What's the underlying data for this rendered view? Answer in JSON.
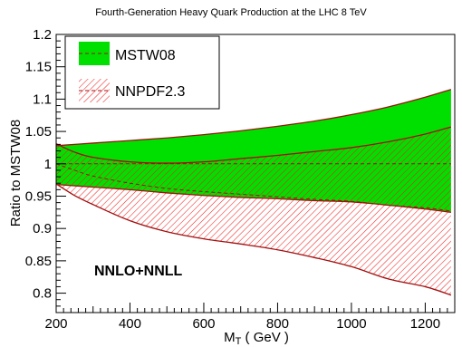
{
  "chart_data": {
    "type": "area",
    "title": "Fourth-Generation Heavy Quark Production at the LHC 8 TeV",
    "xlabel_main": "M",
    "xlabel_sub": "T",
    "xlabel_unit": " ( GeV )",
    "ylabel": "Ratio to MSTW08",
    "xlim": [
      200,
      1280
    ],
    "ylim": [
      0.77,
      1.2
    ],
    "x_ticks": [
      200,
      400,
      600,
      800,
      1000,
      1200
    ],
    "x_tick_labels": [
      "200",
      "400",
      "600",
      "800",
      "1000",
      "1200"
    ],
    "y_ticks": [
      0.8,
      0.85,
      0.9,
      0.95,
      1.0,
      1.05,
      1.1,
      1.15,
      1.2
    ],
    "y_tick_labels": [
      "0.8",
      "0.85",
      "0.9",
      "0.95",
      "1",
      "1.05",
      "1.1",
      "1.15",
      "1.2"
    ],
    "annotation": "NNLO+NNLL",
    "grid": false,
    "legend_position": "top-left",
    "series": [
      {
        "name": "MSTW08",
        "style": "solid-band",
        "color": "#00e000",
        "line_color": "#a01010",
        "x": [
          200,
          300,
          400,
          500,
          600,
          700,
          800,
          900,
          1000,
          1100,
          1200,
          1270
        ],
        "upper": [
          1.028,
          1.032,
          1.036,
          1.04,
          1.045,
          1.051,
          1.058,
          1.066,
          1.076,
          1.088,
          1.103,
          1.115
        ],
        "central": [
          1.0,
          1.0,
          1.0,
          1.0,
          1.0,
          1.0,
          1.0,
          1.0,
          1.0,
          1.0,
          1.0,
          1.0
        ],
        "lower": [
          0.968,
          0.964,
          0.96,
          0.955,
          0.951,
          0.948,
          0.946,
          0.943,
          0.941,
          0.936,
          0.93,
          0.925
        ]
      },
      {
        "name": "NNPDF2.3",
        "style": "hatched-band",
        "color": "#ee2222",
        "line_color": "#a01010",
        "x": [
          200,
          250,
          300,
          400,
          500,
          600,
          700,
          800,
          900,
          1000,
          1100,
          1200,
          1270
        ],
        "upper": [
          1.031,
          1.018,
          1.01,
          1.003,
          1.001,
          1.003,
          1.008,
          1.013,
          1.019,
          1.025,
          1.034,
          1.046,
          1.057
        ],
        "central": [
          1.0,
          0.99,
          0.981,
          0.97,
          0.962,
          0.957,
          0.953,
          0.949,
          0.945,
          0.942,
          0.936,
          0.932,
          0.927
        ],
        "lower": [
          0.969,
          0.951,
          0.937,
          0.912,
          0.895,
          0.884,
          0.876,
          0.867,
          0.855,
          0.841,
          0.822,
          0.81,
          0.797
        ]
      }
    ]
  }
}
